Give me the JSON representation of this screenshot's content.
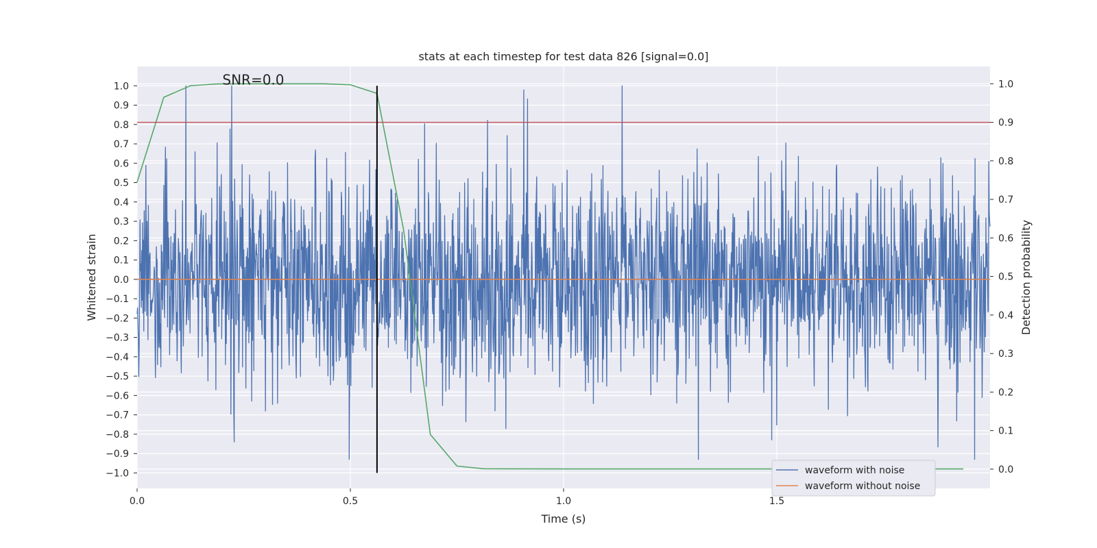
{
  "chart_data": {
    "type": "line",
    "title": "stats at each timestep for test data 826 [signal=0.0]",
    "xlabel": "Time (s)",
    "ylabel_left": "Whitened strain",
    "ylabel_right": "Detection probability",
    "xlim": [
      0.0,
      2.0
    ],
    "ylim_left": [
      -1.08,
      1.1
    ],
    "ylim_right": [
      -0.05,
      1.045
    ],
    "x_ticks": [
      0.0,
      0.5,
      1.0,
      1.5
    ],
    "x_tick_labels": [
      "0.0",
      "0.5",
      "1.0",
      "1.5"
    ],
    "y_left_ticks": [
      1.0,
      0.9,
      0.8,
      0.7,
      0.6,
      0.5,
      0.4,
      0.3,
      0.2,
      0.1,
      0.0,
      -0.1,
      -0.2,
      -0.3,
      -0.4,
      -0.5,
      -0.6,
      -0.7,
      -0.8,
      -0.9,
      -1.0
    ],
    "y_left_tick_labels": [
      "1.0",
      "0.9",
      "0.8",
      "0.7",
      "0.6",
      "0.5",
      "0.4",
      "0.3",
      "0.2",
      "0.1",
      "0.0",
      "−0.1",
      "−0.2",
      "−0.3",
      "−0.4",
      "−0.5",
      "−0.6",
      "−0.7",
      "−0.8",
      "−0.9",
      "−1.0"
    ],
    "y_right_ticks": [
      1.0,
      0.9,
      0.8,
      0.7,
      0.6,
      0.5,
      0.4,
      0.3,
      0.2,
      0.1,
      0.0
    ],
    "y_right_tick_labels": [
      "1.0",
      "0.9",
      "0.8",
      "0.7",
      "0.6",
      "0.5",
      "0.4",
      "0.3",
      "0.2",
      "0.1",
      "0.0"
    ],
    "annotation": "SNR=0.0",
    "annotation_x": 0.2,
    "annotation_y": 1.0,
    "threshold_line": {
      "axis": "right",
      "y": 0.9,
      "color": "#c44e52"
    },
    "marker_line": {
      "x": 0.5625,
      "y_range": [
        -1.0,
        1.0
      ],
      "color": "#000000"
    },
    "series": [
      {
        "name": "waveform with noise",
        "axis": "left",
        "color": "#4c72b0",
        "render": "noise",
        "seed": 826,
        "n_points": 2048,
        "x_range": [
          0.0,
          2.0
        ],
        "range": [
          -0.93,
          1.0
        ]
      },
      {
        "name": "waveform without noise",
        "axis": "left",
        "color": "#dd8452",
        "x": [
          0.0,
          2.0
        ],
        "y": [
          0.0,
          0.0
        ]
      },
      {
        "name": "Detection probability",
        "axis": "right",
        "color": "#55a868",
        "show_in_legend": false,
        "x": [
          0.0,
          0.0625,
          0.125,
          0.1875,
          0.25,
          0.3125,
          0.375,
          0.4375,
          0.5,
          0.5625,
          0.625,
          0.6875,
          0.75,
          0.8125,
          0.875,
          1.0,
          1.25,
          1.5,
          1.75,
          1.9375
        ],
        "y": [
          0.745,
          0.965,
          0.995,
          0.9995,
          1.0,
          1.0,
          1.0,
          1.0,
          0.9975,
          0.975,
          0.62,
          0.09,
          0.008,
          0.001,
          0.0008,
          0.0006,
          0.0006,
          0.0006,
          0.0006,
          0.0006
        ]
      }
    ],
    "legend": {
      "location": "lower-right",
      "entries": [
        "waveform with noise",
        "waveform without noise"
      ]
    },
    "colors": {
      "plot_background": "#eaeaf2",
      "grid": "#ffffff",
      "text": "#262626"
    }
  }
}
